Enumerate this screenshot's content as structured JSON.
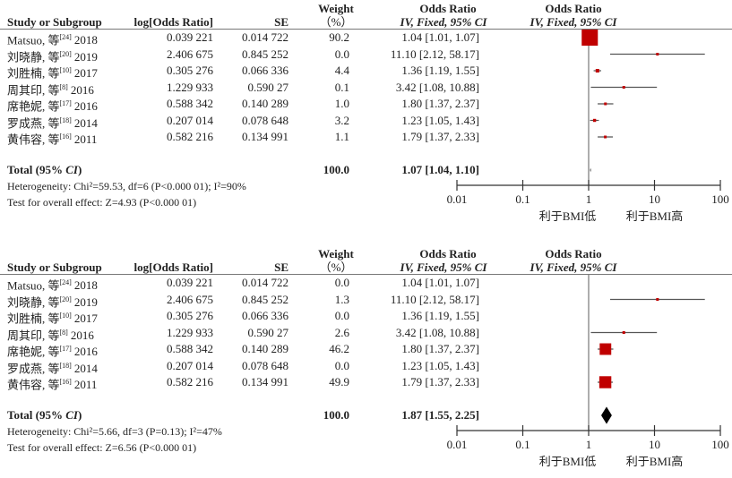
{
  "headers": {
    "study": "Study or Subgroup",
    "log_or": "log[Odds Ratio]",
    "se": "SE",
    "weight_line1": "Weight",
    "weight_line2": "（%）",
    "or_line1": "Odds Ratio",
    "or_line2": "IV, Fixed, 95% CI",
    "plot_line1": "Odds Ratio",
    "plot_line2": "IV, Fixed, 95% CI"
  },
  "chart_data": [
    {
      "type": "forest",
      "scale": "log",
      "xlim": [
        0.01,
        100
      ],
      "x_ticks": [
        "0.01",
        "0.1",
        "1",
        "10",
        "100"
      ],
      "x_tick_values": [
        0.01,
        0.1,
        1,
        10,
        100
      ],
      "favours_left": "利于BMI低",
      "favours_right": "利于BMI高",
      "studies": [
        {
          "name": "Matsuo, 等",
          "ref": "[24]",
          "year": "2018",
          "log_or": "0.039 221",
          "se": "0.014 722",
          "weight": "90.2",
          "or_text": "1.04 [1.01, 1.07]",
          "or": 1.04,
          "lo": 1.01,
          "hi": 1.07,
          "w": 90.2
        },
        {
          "name": "刘晓静, 等",
          "ref": "[20]",
          "year": "2019",
          "log_or": "2.406 675",
          "se": "0.845 252",
          "weight": "0.0",
          "or_text": "11.10 [2.12, 58.17]",
          "or": 11.1,
          "lo": 2.12,
          "hi": 58.17,
          "w": 0.0
        },
        {
          "name": "刘胜楠, 等",
          "ref": "[10]",
          "year": "2017",
          "log_or": "0.305 276",
          "se": "0.066 336",
          "weight": "4.4",
          "or_text": "1.36 [1.19, 1.55]",
          "or": 1.36,
          "lo": 1.19,
          "hi": 1.55,
          "w": 4.4
        },
        {
          "name": "周其印, 等",
          "ref": "[8]",
          "year": "2016",
          "log_or": "1.229 933",
          "se": "0.590 27",
          "weight": "0.1",
          "or_text": "3.42 [1.08, 10.88]",
          "or": 3.42,
          "lo": 1.08,
          "hi": 10.88,
          "w": 0.1
        },
        {
          "name": "席艳妮, 等",
          "ref": "[17]",
          "year": "2016",
          "log_or": "0.588 342",
          "se": "0.140 289",
          "weight": "1.0",
          "or_text": "1.80 [1.37, 2.37]",
          "or": 1.8,
          "lo": 1.37,
          "hi": 2.37,
          "w": 1.0
        },
        {
          "name": "罗成燕, 等",
          "ref": "[18]",
          "year": "2014",
          "log_or": "0.207 014",
          "se": "0.078 648",
          "weight": "3.2",
          "or_text": "1.23 [1.05, 1.43]",
          "or": 1.23,
          "lo": 1.05,
          "hi": 1.43,
          "w": 3.2
        },
        {
          "name": "黄伟容, 等",
          "ref": "[16]",
          "year": "2011",
          "log_or": "0.582 216",
          "se": "0.134 991",
          "weight": "1.1",
          "or_text": "1.79 [1.37, 2.33]",
          "or": 1.79,
          "lo": 1.37,
          "hi": 2.33,
          "w": 1.1
        }
      ],
      "total": {
        "label": "Total (95% ",
        "label_ci": "CI",
        "label_end": ")",
        "weight": "100.0",
        "or_text": "1.07 [1.04, 1.10]",
        "or": 1.07,
        "lo": 1.04,
        "hi": 1.1
      },
      "heterogeneity": "Heterogeneity: Chi²=59.53, df=6 (P<0.000 01); I²=90%",
      "overall_effect": "Test for overall effect: Z=4.93 (P<0.000 01)"
    },
    {
      "type": "forest",
      "scale": "log",
      "xlim": [
        0.01,
        100
      ],
      "x_ticks": [
        "0.01",
        "0.1",
        "1",
        "10",
        "100"
      ],
      "x_tick_values": [
        0.01,
        0.1,
        1,
        10,
        100
      ],
      "favours_left": "利于BMI低",
      "favours_right": "利于BMI高",
      "studies": [
        {
          "name": "Matsuo, 等",
          "ref": "[24]",
          "year": "2018",
          "log_or": "0.039 221",
          "se": "0.014 722",
          "weight": "0.0",
          "or_text": "1.04 [1.01, 1.07]",
          "or": 1.04,
          "lo": 1.01,
          "hi": 1.07,
          "w": 0.0,
          "hidden": true
        },
        {
          "name": "刘晓静, 等",
          "ref": "[20]",
          "year": "2019",
          "log_or": "2.406 675",
          "se": "0.845 252",
          "weight": "1.3",
          "or_text": "11.10 [2.12, 58.17]",
          "or": 11.1,
          "lo": 2.12,
          "hi": 58.17,
          "w": 1.3
        },
        {
          "name": "刘胜楠, 等",
          "ref": "[10]",
          "year": "2017",
          "log_or": "0.305 276",
          "se": "0.066 336",
          "weight": "0.0",
          "or_text": "1.36 [1.19, 1.55]",
          "or": 1.36,
          "lo": 1.19,
          "hi": 1.55,
          "w": 0.0,
          "hidden": true
        },
        {
          "name": "周其印, 等",
          "ref": "[8]",
          "year": "2016",
          "log_or": "1.229 933",
          "se": "0.590 27",
          "weight": "2.6",
          "or_text": "3.42 [1.08, 10.88]",
          "or": 3.42,
          "lo": 1.08,
          "hi": 10.88,
          "w": 2.6
        },
        {
          "name": "席艳妮, 等",
          "ref": "[17]",
          "year": "2016",
          "log_or": "0.588 342",
          "se": "0.140 289",
          "weight": "46.2",
          "or_text": "1.80 [1.37, 2.37]",
          "or": 1.8,
          "lo": 1.37,
          "hi": 2.37,
          "w": 46.2
        },
        {
          "name": "罗成燕, 等",
          "ref": "[18]",
          "year": "2014",
          "log_or": "0.207 014",
          "se": "0.078 648",
          "weight": "0.0",
          "or_text": "1.23 [1.05, 1.43]",
          "or": 1.23,
          "lo": 1.05,
          "hi": 1.43,
          "w": 0.0,
          "hidden": true
        },
        {
          "name": "黄伟容, 等",
          "ref": "[16]",
          "year": "2011",
          "log_or": "0.582 216",
          "se": "0.134 991",
          "weight": "49.9",
          "or_text": "1.79 [1.37, 2.33]",
          "or": 1.79,
          "lo": 1.37,
          "hi": 2.33,
          "w": 49.9
        }
      ],
      "total": {
        "label": "Total (95% ",
        "label_ci": "CI",
        "label_end": ")",
        "weight": "100.0",
        "or_text": "1.87 [1.55, 2.25]",
        "or": 1.87,
        "lo": 1.55,
        "hi": 2.25
      },
      "heterogeneity": "Heterogeneity: Chi²=5.66, df=3 (P=0.13); I²=47%",
      "overall_effect": "Test for overall effect: Z=6.56 (P<0.000 01)"
    }
  ],
  "colors": {
    "marker": "#c00000",
    "ci_line": "#555555",
    "diamond": "#000000",
    "axis": "#333333"
  }
}
